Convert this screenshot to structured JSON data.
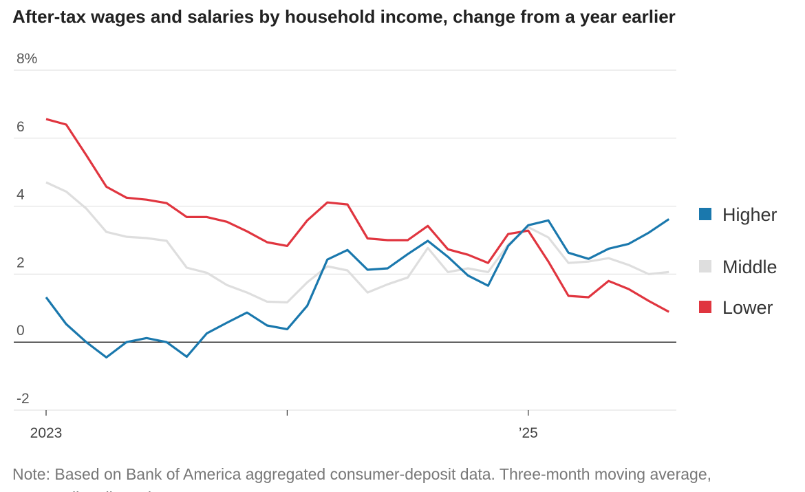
{
  "chart_data": {
    "type": "line",
    "title": "After-tax wages and salaries by household income, change from a year earlier",
    "note": "Note: Based on Bank of America aggregated consumer-deposit data. Three-month moving average, seasonally adjusted.",
    "categories": [
      "2023",
      null,
      null,
      null,
      null,
      null,
      null,
      null,
      null,
      null,
      null,
      null,
      null,
      null,
      null,
      null,
      null,
      null,
      null,
      null,
      null,
      null,
      null,
      null,
      "’25",
      null,
      null,
      null,
      null,
      null,
      null,
      null
    ],
    "series": [
      {
        "name": "Higher",
        "color": "#1a78ad",
        "values": [
          1.32,
          0.53,
          0,
          -0.45,
          0,
          0.12,
          0,
          -0.43,
          0.26,
          0.57,
          0.87,
          0.49,
          0.38,
          1.07,
          2.43,
          2.71,
          2.13,
          2.17,
          2.59,
          2.98,
          2.51,
          1.96,
          1.66,
          2.83,
          3.44,
          3.58,
          2.63,
          2.45,
          2.75,
          2.89,
          3.22,
          3.62
        ]
      },
      {
        "name": "Middle",
        "color": "#dedede",
        "values": [
          4.7,
          4.43,
          3.93,
          3.24,
          3.1,
          3.06,
          2.98,
          2.19,
          2.04,
          1.68,
          1.46,
          1.19,
          1.17,
          1.76,
          2.23,
          2.11,
          1.46,
          1.7,
          1.9,
          2.77,
          2.06,
          2.17,
          2.06,
          2.87,
          3.38,
          3.08,
          2.33,
          2.37,
          2.47,
          2.27,
          2.0,
          2.06
        ]
      },
      {
        "name": "Lower",
        "color": "#e0353f",
        "values": [
          6.56,
          6.4,
          5.5,
          4.57,
          4.25,
          4.19,
          4.09,
          3.68,
          3.68,
          3.54,
          3.26,
          2.94,
          2.83,
          3.58,
          4.11,
          4.05,
          3.05,
          3.0,
          3.0,
          3.42,
          2.73,
          2.57,
          2.33,
          3.18,
          3.28,
          2.37,
          1.36,
          1.32,
          1.8,
          1.56,
          1.21,
          0.89
        ]
      }
    ],
    "ylim": [
      -2,
      8
    ],
    "yticks": [
      -2,
      0,
      2,
      4,
      6,
      {
        "value": 8,
        "label": "8%"
      }
    ],
    "grid": true
  }
}
